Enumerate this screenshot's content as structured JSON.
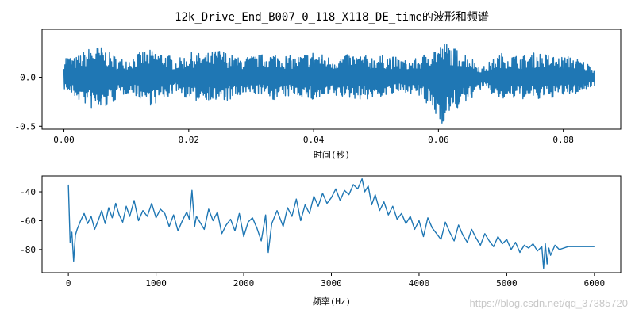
{
  "figure_title": "12k_Drive_End_B007_0_118_X118_DE_time的波形和频谱",
  "watermark": "https://blog.csdn.net/qq_37385720",
  "series_color": "#1f77b4",
  "chart_data": [
    {
      "type": "line",
      "xlabel": "时间(秒)",
      "ylabel": "",
      "xlim": [
        -0.0035,
        0.0892
      ],
      "ylim": [
        -0.53,
        0.49
      ],
      "xticks": [
        0.0,
        0.02,
        0.04,
        0.06,
        0.08
      ],
      "xtick_labels": [
        "0.00",
        "0.02",
        "0.04",
        "0.06",
        "0.08"
      ],
      "yticks": [
        0.0,
        -0.5
      ],
      "ytick_labels": [
        "0.0",
        "-0.5"
      ],
      "grid": false,
      "series": [
        {
          "x": [
            0.0,
            0.0017,
            0.0042,
            0.0058,
            0.0075,
            0.009,
            0.0105,
            0.0125,
            0.014,
            0.016,
            0.018,
            0.0205,
            0.0225,
            0.025,
            0.028,
            0.031,
            0.034,
            0.037,
            0.04,
            0.043,
            0.046,
            0.049,
            0.052,
            0.055,
            0.057,
            0.059,
            0.0605,
            0.0615,
            0.0625,
            0.0645,
            0.067,
            0.07,
            0.073,
            0.076,
            0.079,
            0.0815,
            0.084,
            0.085
          ],
          "envelope_max": [
            0.24,
            0.2,
            0.31,
            0.32,
            0.25,
            0.19,
            0.21,
            0.27,
            0.28,
            0.26,
            0.18,
            0.26,
            0.24,
            0.29,
            0.2,
            0.23,
            0.25,
            0.21,
            0.27,
            0.2,
            0.24,
            0.22,
            0.23,
            0.17,
            0.2,
            0.31,
            0.34,
            0.36,
            0.3,
            0.25,
            0.1,
            0.25,
            0.22,
            0.26,
            0.21,
            0.22,
            0.14,
            0.1
          ],
          "envelope_min": [
            -0.12,
            -0.21,
            -0.32,
            -0.36,
            -0.28,
            -0.2,
            -0.16,
            -0.23,
            -0.29,
            -0.24,
            -0.14,
            -0.26,
            -0.22,
            -0.27,
            -0.21,
            -0.17,
            -0.24,
            -0.18,
            -0.25,
            -0.2,
            -0.22,
            -0.23,
            -0.19,
            -0.15,
            -0.21,
            -0.36,
            -0.48,
            -0.42,
            -0.35,
            -0.27,
            -0.11,
            -0.24,
            -0.22,
            -0.24,
            -0.2,
            -0.18,
            -0.12,
            -0.09
          ]
        }
      ]
    },
    {
      "type": "line",
      "xlabel": "频率(Hz)",
      "ylabel": "",
      "xlim": [
        -300,
        6300
      ],
      "ylim": [
        -96,
        -29
      ],
      "xticks": [
        0,
        1000,
        2000,
        3000,
        4000,
        5000,
        6000
      ],
      "xtick_labels": [
        "0",
        "1000",
        "2000",
        "3000",
        "4000",
        "5000",
        "6000"
      ],
      "yticks": [
        -40,
        -60,
        -80
      ],
      "ytick_labels": [
        "-40",
        "-60",
        "-80"
      ],
      "grid": false,
      "series": [
        {
          "x": [
            0,
            20,
            40,
            60,
            80,
            100,
            140,
            180,
            220,
            260,
            300,
            340,
            380,
            420,
            460,
            500,
            540,
            580,
            620,
            660,
            700,
            750,
            800,
            850,
            900,
            950,
            1000,
            1050,
            1100,
            1150,
            1200,
            1250,
            1300,
            1350,
            1380,
            1410,
            1440,
            1460,
            1500,
            1550,
            1600,
            1650,
            1700,
            1750,
            1800,
            1850,
            1900,
            1950,
            2000,
            2050,
            2100,
            2150,
            2200,
            2250,
            2280,
            2320,
            2380,
            2450,
            2500,
            2550,
            2600,
            2650,
            2700,
            2750,
            2800,
            2850,
            2900,
            2950,
            3000,
            3050,
            3100,
            3150,
            3200,
            3250,
            3300,
            3350,
            3380,
            3420,
            3460,
            3500,
            3550,
            3600,
            3650,
            3700,
            3750,
            3800,
            3850,
            3900,
            3950,
            4000,
            4050,
            4100,
            4150,
            4200,
            4250,
            4300,
            4350,
            4400,
            4450,
            4500,
            4550,
            4600,
            4650,
            4700,
            4750,
            4800,
            4850,
            4900,
            4950,
            5000,
            5050,
            5100,
            5150,
            5200,
            5250,
            5300,
            5350,
            5400,
            5420,
            5440,
            5460,
            5480,
            5500,
            5550,
            5600,
            5700,
            5800,
            5900,
            6000
          ],
          "y": [
            -35,
            -75,
            -68,
            -88,
            -70,
            -66,
            -60,
            -55,
            -62,
            -57,
            -66,
            -60,
            -53,
            -62,
            -51,
            -58,
            -48,
            -56,
            -61,
            -50,
            -57,
            -46,
            -60,
            -53,
            -57,
            -48,
            -58,
            -52,
            -55,
            -64,
            -56,
            -67,
            -60,
            -54,
            -59,
            -39,
            -64,
            -57,
            -61,
            -66,
            -52,
            -60,
            -54,
            -69,
            -63,
            -59,
            -67,
            -55,
            -71,
            -61,
            -58,
            -65,
            -74,
            -56,
            -82,
            -62,
            -53,
            -64,
            -51,
            -57,
            -45,
            -60,
            -49,
            -55,
            -43,
            -50,
            -41,
            -48,
            -44,
            -38,
            -46,
            -39,
            -42,
            -35,
            -38,
            -31,
            -40,
            -36,
            -49,
            -42,
            -53,
            -47,
            -56,
            -50,
            -59,
            -55,
            -62,
            -57,
            -66,
            -60,
            -71,
            -58,
            -65,
            -69,
            -73,
            -61,
            -68,
            -74,
            -63,
            -70,
            -75,
            -66,
            -72,
            -77,
            -69,
            -74,
            -78,
            -71,
            -76,
            -73,
            -80,
            -75,
            -82,
            -77,
            -79,
            -76,
            -81,
            -78,
            -93,
            -76,
            -90,
            -79,
            -84,
            -77,
            -80,
            -78,
            -78,
            -78,
            -78
          ]
        }
      ]
    }
  ]
}
